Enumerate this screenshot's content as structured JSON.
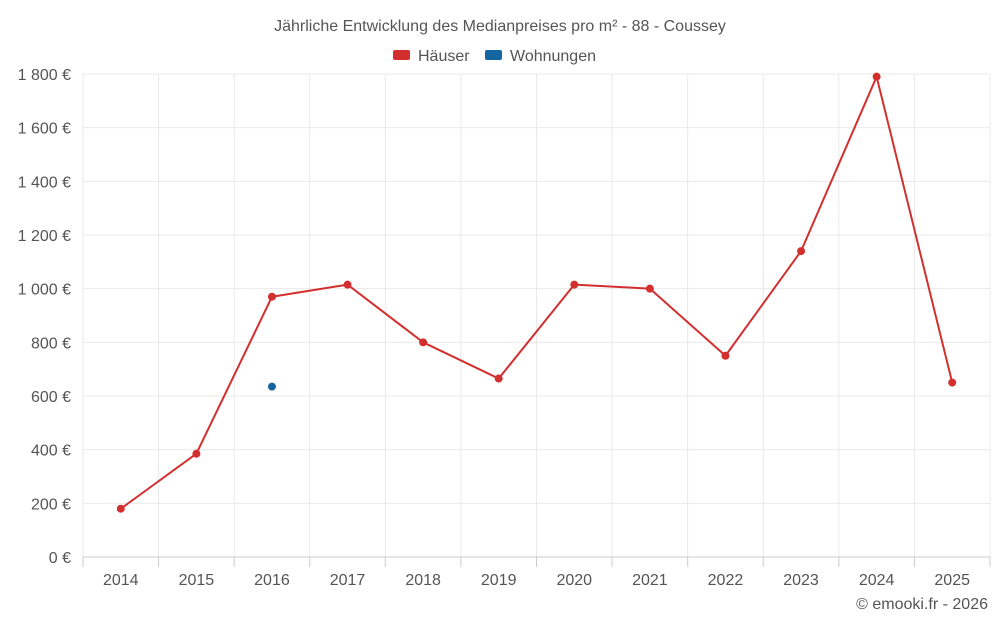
{
  "chart_data": {
    "type": "line",
    "title": "Jährliche Entwicklung des Medianpreises pro m² - 88 - Coussey",
    "categories": [
      "2014",
      "2015",
      "2016",
      "2017",
      "2018",
      "2019",
      "2020",
      "2021",
      "2022",
      "2023",
      "2024",
      "2025"
    ],
    "series": [
      {
        "name": "Häuser",
        "color": "#d32f2f",
        "values": [
          180,
          385,
          970,
          1015,
          800,
          665,
          1015,
          1000,
          750,
          1140,
          1790,
          650
        ]
      },
      {
        "name": "Wohnungen",
        "color": "#1565a0",
        "values": [
          null,
          null,
          635,
          null,
          null,
          null,
          null,
          null,
          null,
          null,
          null,
          null
        ]
      }
    ],
    "ylim": [
      0,
      1800
    ],
    "yticks": [
      0,
      200,
      400,
      600,
      800,
      1000,
      1200,
      1400,
      1600,
      1800
    ],
    "ytick_labels": [
      "0 €",
      "200 €",
      "400 €",
      "600 €",
      "800 €",
      "1 000 €",
      "1 200 €",
      "1 400 €",
      "1 600 €",
      "1 800 €"
    ],
    "grid": true,
    "legend_position": "top-center"
  },
  "credit": "© emooki.fr - 2026"
}
